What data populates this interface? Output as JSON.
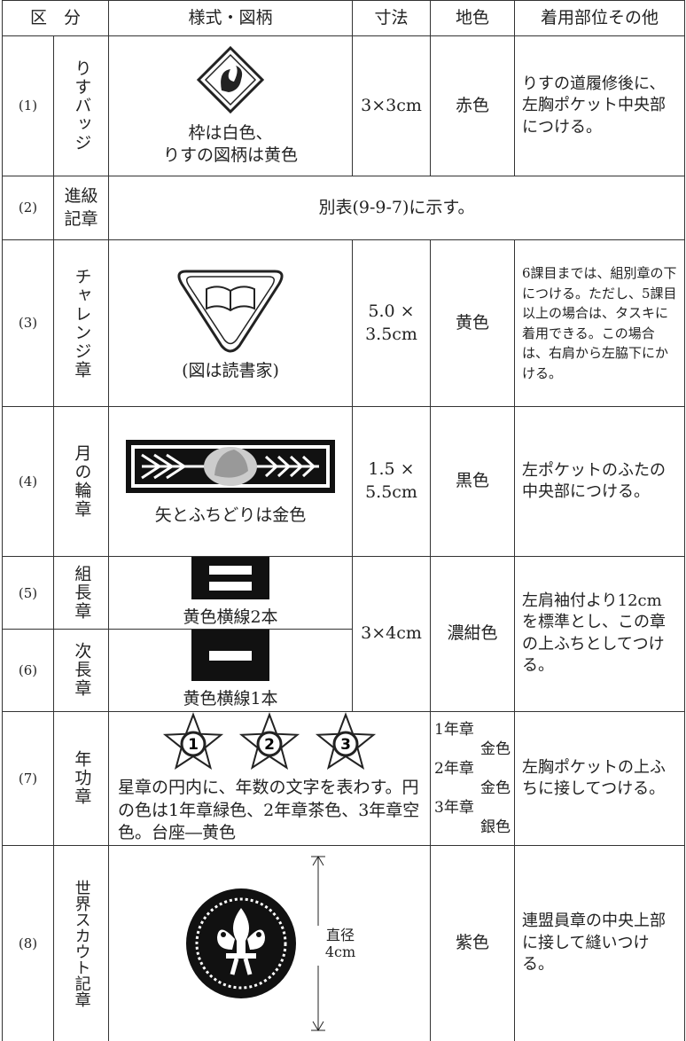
{
  "header": [
    "区　分",
    "様式・図柄",
    "寸法",
    "地色",
    "着用部位その他"
  ],
  "rows": [
    {
      "no": "(1)",
      "name": "りすバッジ",
      "caption": [
        "枠は白色、",
        "りすの図柄は黄色"
      ],
      "size": "3×3cm",
      "color": "赤色",
      "note": "りすの道履修後に、左胸ポケット中央部につける。"
    },
    {
      "no": "(2)",
      "name": [
        "進級",
        "記章"
      ],
      "note": "別表(9-9-7)に示す。"
    },
    {
      "no": "(3)",
      "name": "チャレンジ章",
      "caption": "(図は読書家)",
      "size": [
        "5.0 ×",
        "3.5cm"
      ],
      "color": "黄色",
      "note": "6課目までは、組別章の下につける。ただし、5課目以上の場合は、タスキに着用できる。この場合は、右肩から左脇下にかける。"
    },
    {
      "no": "(4)",
      "name": "月の輪章",
      "caption": "矢とふちどりは金色",
      "size": [
        "1.5 ×",
        "5.5cm"
      ],
      "color": "黒色",
      "note": "左ポケットのふたの中央部につける。"
    },
    {
      "no": "(5)",
      "name": "組長章",
      "caption": "黄色横線2本",
      "size": "3×4cm",
      "color": "濃紺色",
      "note": "左肩袖付より12cmを標準とし、この章の上ふちとしてつける。"
    },
    {
      "no": "(6)",
      "name": "次長章",
      "caption": "黄色横線1本"
    },
    {
      "no": "(7)",
      "name": "年功章",
      "badges": [
        "1",
        "2",
        "3"
      ],
      "caption": "星章の円内に、年数の文字を表わす。円の色は1年章緑色、2年章茶色、3年章空色。台座―黄色",
      "color": [
        "1年章",
        "金色",
        "2年章",
        "金色",
        "3年章",
        "銀色"
      ],
      "note": "左胸ポケットの上ふちに接してつける。"
    },
    {
      "no": "(8)",
      "name": "世界スカウト記章",
      "dimension": [
        "直径",
        "4cm"
      ],
      "color": "紫色",
      "note": "連盟員章の中央上部に接して縫いつける。"
    }
  ]
}
